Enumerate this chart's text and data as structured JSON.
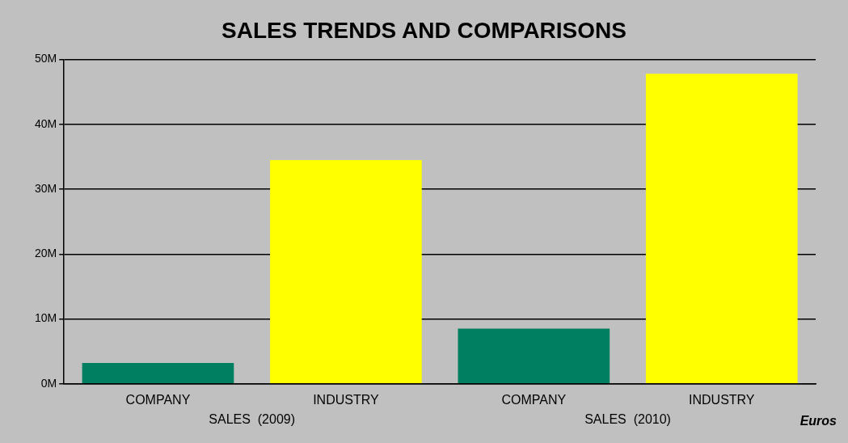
{
  "chart_data": {
    "type": "bar",
    "title": "SALES TRENDS AND COMPARISONS",
    "categories": [
      "COMPANY",
      "INDUSTRY",
      "COMPANY",
      "INDUSTRY"
    ],
    "values": [
      3.2,
      34.5,
      8.5,
      47.8
    ],
    "colors": [
      "#008060",
      "#ffff00",
      "#008060",
      "#ffff00"
    ],
    "ylim": [
      0,
      50
    ],
    "yticks": [
      {
        "value": 0,
        "label": "0M"
      },
      {
        "value": 10,
        "label": "10M"
      },
      {
        "value": 20,
        "label": "20M"
      },
      {
        "value": 30,
        "label": "30M"
      },
      {
        "value": 40,
        "label": "40M"
      },
      {
        "value": 50,
        "label": "50M"
      }
    ],
    "grid": "y",
    "legend": false,
    "annotations": [
      "SALES  (2009)",
      "SALES  (2010)",
      "Euros"
    ]
  }
}
